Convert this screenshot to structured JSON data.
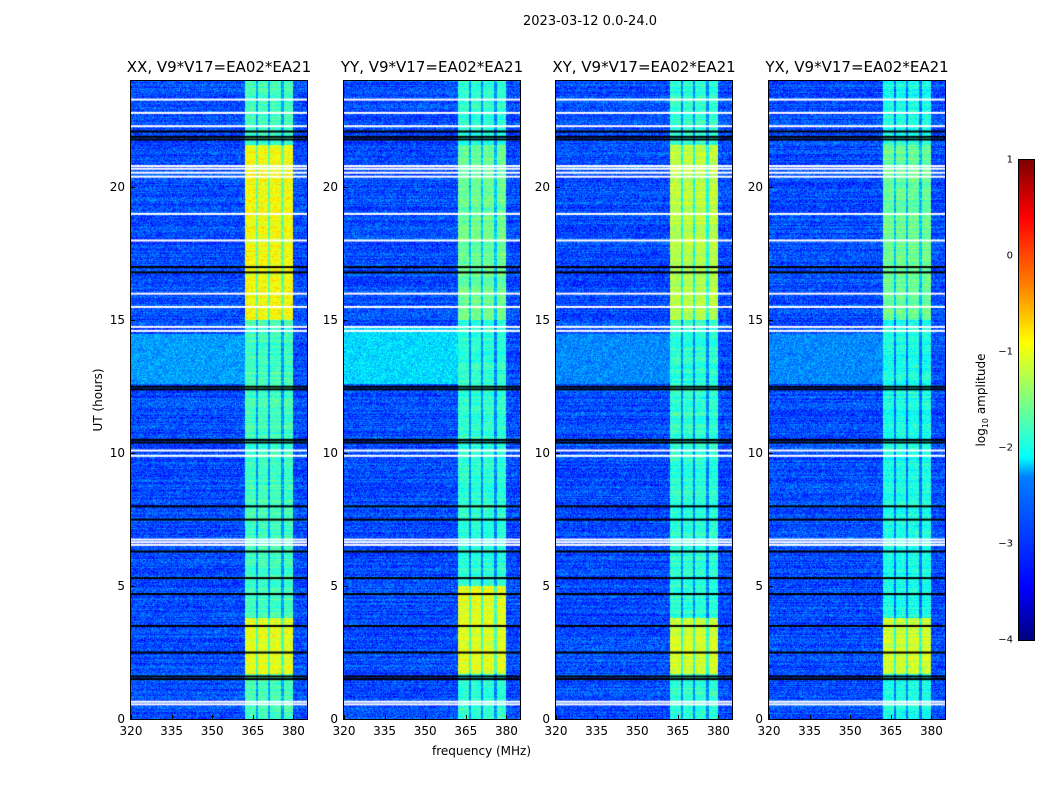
{
  "chart_data": {
    "type": "heatmap",
    "suptitle": "2023-03-12 0.0-24.0",
    "xlabel": "frequency (MHz)",
    "ylabel": "UT (hours)",
    "xlim": [
      320,
      385
    ],
    "ylim": [
      0,
      24
    ],
    "xticks": [
      "320",
      "335",
      "350",
      "365",
      "380"
    ],
    "xtick_values": [
      320,
      335,
      350,
      365,
      380
    ],
    "yticks": [
      "0",
      "5",
      "10",
      "15",
      "20"
    ],
    "ytick_values": [
      0,
      5,
      10,
      15,
      20
    ],
    "colorbar": {
      "label": "log10 amplitude",
      "label_main": "log",
      "label_sub": "10",
      "label_tail": " amplitude",
      "range": [
        -4,
        1
      ],
      "ticks": [
        "1",
        "0",
        "−1",
        "−2",
        "−3",
        "−4"
      ],
      "tick_values": [
        1,
        0,
        -1,
        -2,
        -3,
        -4
      ],
      "colormap": "jet"
    },
    "background_level": -3.0,
    "rfi_band_mhz": [
      362,
      380
    ],
    "rfi_gaps_mhz": [
      366.5,
      371,
      376
    ],
    "flagged_white_ut": [
      0.55,
      0.65,
      6.55,
      6.65,
      6.75,
      9.9,
      10.1,
      14.6,
      14.75,
      15.5,
      16.0,
      18.0,
      19.0,
      20.4,
      20.55,
      20.7,
      20.8,
      22.3,
      22.8,
      23.3
    ],
    "flagged_black_ut": [
      1.5,
      1.6,
      2.5,
      3.5,
      4.7,
      5.3,
      6.3,
      7.5,
      8.0,
      10.4,
      10.5,
      12.4,
      12.5,
      16.8,
      17.0,
      21.8,
      21.9,
      22.1
    ],
    "panels": [
      {
        "title": "XX, V9*V17=EA02*EA21",
        "band_levels": [
          {
            "ut": [
              1.7,
              3.8
            ],
            "level": -1.0
          },
          {
            "ut": [
              15.0,
              21.6
            ],
            "level": -0.9
          },
          {
            "ut": [
              0,
              24
            ],
            "level": -1.8
          }
        ],
        "broadband_ut": [
          12.6,
          14.5
        ],
        "broadband_level": -2.6
      },
      {
        "title": "YY, V9*V17=EA02*EA21",
        "band_levels": [
          {
            "ut": [
              1.7,
              5.0
            ],
            "level": -1.0
          },
          {
            "ut": [
              15.0,
              21.6
            ],
            "level": -1.6
          },
          {
            "ut": [
              0,
              24
            ],
            "level": -1.9
          }
        ],
        "broadband_ut": [
          12.6,
          14.8
        ],
        "broadband_level": -2.3
      },
      {
        "title": "XY, V9*V17=EA02*EA21",
        "band_levels": [
          {
            "ut": [
              1.7,
              3.8
            ],
            "level": -1.1
          },
          {
            "ut": [
              15.0,
              21.6
            ],
            "level": -1.2
          },
          {
            "ut": [
              0,
              24
            ],
            "level": -1.9
          }
        ],
        "broadband_ut": [
          12.6,
          14.5
        ],
        "broadband_level": -2.7
      },
      {
        "title": "YX, V9*V17=EA02*EA21",
        "band_levels": [
          {
            "ut": [
              1.7,
              3.8
            ],
            "level": -1.1
          },
          {
            "ut": [
              15.0,
              21.6
            ],
            "level": -1.6
          },
          {
            "ut": [
              0,
              24
            ],
            "level": -2.0
          }
        ],
        "broadband_ut": [
          12.6,
          14.5
        ],
        "broadband_level": -2.7
      }
    ]
  }
}
